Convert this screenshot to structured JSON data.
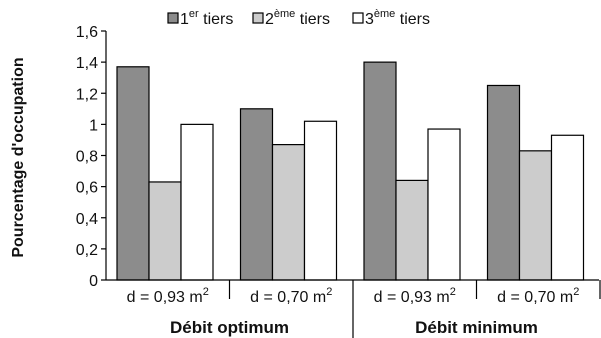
{
  "chart_data": {
    "type": "bar",
    "ylabel": "Pourcentage d'occupation",
    "ylim": [
      0,
      1.6
    ],
    "yticks": [
      "0",
      "0,2",
      "0,4",
      "0,6",
      "0,8",
      "1",
      "1,2",
      "1,4",
      "1,6"
    ],
    "grid": false,
    "legend_position": "top",
    "categories": [
      {
        "base": "d = 0,93 m",
        "sup": "2"
      },
      {
        "base": "d = 0,70 m",
        "sup": "2"
      },
      {
        "base": "d = 0,93 m",
        "sup": "2"
      },
      {
        "base": "d = 0,70 m",
        "sup": "2"
      }
    ],
    "groups": [
      "Débit optimum",
      "Débit minimum"
    ],
    "series": [
      {
        "name": {
          "base": "1",
          "sup": "er",
          "tail": " tiers"
        },
        "color": "#8c8c8c",
        "values": [
          1.37,
          1.1,
          1.4,
          1.25
        ]
      },
      {
        "name": {
          "base": "2",
          "sup": "ème",
          "tail": " tiers"
        },
        "color": "#cccccc",
        "values": [
          0.63,
          0.87,
          0.64,
          0.83
        ]
      },
      {
        "name": {
          "base": "3",
          "sup": "ème",
          "tail": " tiers"
        },
        "color": "#ffffff",
        "values": [
          1.0,
          1.02,
          0.97,
          0.93
        ]
      }
    ]
  }
}
